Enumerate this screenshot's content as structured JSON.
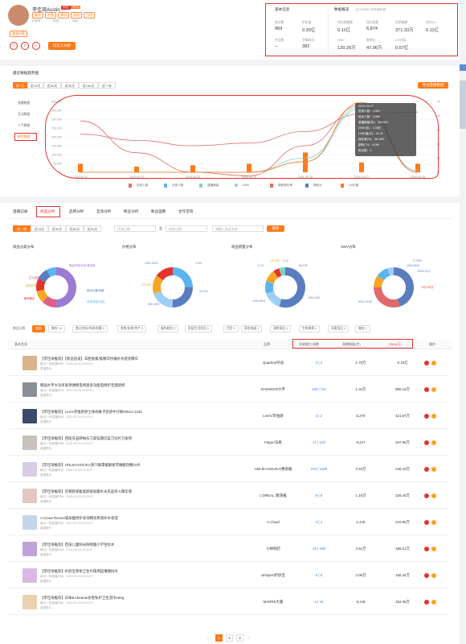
{
  "profile": {
    "name": "李佳琦Austin",
    "tags": [
      "抖音",
      "5374"
    ],
    "subtags": [
      "美妆",
      "护肤",
      "潮流",
      "宠物",
      "日用"
    ],
    "meta": [
      "抖音号：",
      "粉丝：",
      "",
      "地区：",
      "",
      ""
    ],
    "category": "美妆护肤",
    "action": "找达人分析"
  },
  "basic": {
    "title": "基本信息",
    "items": [
      {
        "label": "粉丝数",
        "value": "969"
      },
      {
        "label": "带货量",
        "value": "0.30亿"
      },
      {
        "label": "作品数",
        "value": "--"
      },
      {
        "label": "开播场次",
        "value": "382"
      }
    ]
  },
  "overview": {
    "title": "数据概览",
    "note": "(近30天统计所有播数据)",
    "items": [
      {
        "label": "场均销售额",
        "value": "0.11亿"
      },
      {
        "label": "场均观看",
        "value": "6,874"
      },
      {
        "label": "总销售额",
        "value": "371.33万"
      },
      {
        "label": "场均UV",
        "value": "0.11亿"
      },
      {
        "label": "GMV",
        "value": "120.29万"
      },
      {
        "label": "客单价",
        "value": "47.06万"
      },
      {
        "label": "UV价值",
        "value": "0.57亿"
      }
    ]
  },
  "trend": {
    "title": "最近数据趋势图",
    "ranges": [
      "近7天",
      "近15天",
      "近30天",
      "近90天",
      "近180天",
      "近一年"
    ],
    "export": "导出直播数据",
    "side_tabs": [
      "直播数据",
      "互动数据",
      "人气数据",
      "带货数据"
    ],
    "legend": [
      "在线人数",
      "点赞人数",
      "直播销量",
      "GMV",
      "销售转化率",
      "新粉丝",
      "UV价值"
    ],
    "tooltip": {
      "date": "2020.09.27",
      "lines": [
        "进场人数：4,591",
        "进店人数：2,968",
        "直播销量(件)：395,623",
        "GMV(亿)：1.65亿",
        "UV价值(元)：41.42",
        "转化率(%)：38.18%",
        "新粉(个)：4,196",
        "粉丝数：0"
      ]
    }
  },
  "chart_data": {
    "type": "line",
    "x": [
      "2020.09.22",
      "2020.09.23",
      "2020.09.24",
      "2020.09.25",
      "2020.09.26",
      "2020.09.27",
      "2020.09.28"
    ],
    "yticks_left": [
      "0",
      "50,000",
      "100,000",
      "150,000",
      "200,000",
      "250,000",
      "300,000",
      "350,000",
      "400,000"
    ],
    "yticks_right": [
      "0",
      "10",
      "20",
      "30",
      "40",
      "50"
    ],
    "series": [
      {
        "name": "在线人数",
        "values": [
          215000,
          180000,
          150000,
          165000,
          230000,
          330000,
          340000
        ]
      },
      {
        "name": "直播销量",
        "values": [
          0,
          0,
          0,
          0,
          80000,
          370000,
          10000
        ]
      },
      {
        "name": "GMV",
        "values": [
          0,
          0,
          0,
          0,
          60000,
          360000,
          0
        ]
      },
      {
        "name": "销售转化率",
        "values": [
          290000,
          110000,
          0,
          -20000,
          150000,
          380000,
          0
        ]
      },
      {
        "name": "UV价值",
        "values": [
          0,
          0,
          0,
          0,
          60000,
          395000,
          0
        ]
      }
    ],
    "bars": [
      6,
      4,
      5,
      6,
      14,
      7,
      6
    ],
    "colors": [
      "#e07070",
      "#5ab4f0",
      "#7dd3c0",
      "#9fcff5",
      "#e06a6a",
      "#5a7dbf",
      "#ff7a1a"
    ]
  },
  "analysis": {
    "tabs": [
      "直播记录",
      "商品分析",
      "品牌分析",
      "互动分析",
      "粉丝分析",
      "粉丝画像",
      "合作咨询"
    ],
    "ranges": [
      "近一周",
      "近15天",
      "近30天",
      "近60天",
      "近90天"
    ],
    "date_from": "开始日期",
    "date_sep": "至",
    "date_to": "结束日期",
    "search_ph": "请输入商品名称",
    "search_btn": "搜索"
  },
  "donuts": [
    {
      "title": "商品分类分布",
      "labels": [
        "美妆护肤/彩妆/美容修...",
        "生活电器",
        "食品饮料",
        "服饰鞋包",
        "美容仪器/电器",
        "宠物/家居/玩具"
      ]
    },
    {
      "title": "价格分布",
      "labels": [
        "1000-2000",
        "0-30",
        "100-500",
        "30-100",
        "500-1000"
      ]
    },
    {
      "title": "商品销量分布",
      "labels": [
        "0-10",
        "100-500",
        "10-50",
        "50-100",
        "1000-5000",
        "500-1000"
      ]
    },
    {
      "title": "GMV分布",
      "labels": [
        "0-1000",
        "1000-5000",
        "5000-10万",
        "10万-50万",
        "50万-100万"
      ]
    }
  ],
  "filters": {
    "label": "商品分类:",
    "items": [
      "全部",
      "美妆 14",
      "食品饮料/冲调/保健 3",
      "零食/坚果/特产 2",
      "服饰鞋包 2",
      "家居生活用品 1",
      "百货 1",
      "家用电器 1",
      "宠物用品 1",
      "生鲜果蔬 1",
      "母婴用品 1",
      "箱包 1"
    ]
  },
  "table": {
    "headers": [
      "基本信息",
      "品牌",
      "关联播主/场数",
      "直播销量(件)",
      "GMV(万)",
      "操作"
    ],
    "rows": [
      {
        "title": "【李佳琦推荐】【新品首发】羊胎盘素/肽精华抗皱补水提亮精华",
        "meta": "最近一场直播时间：2020-09-28 20:00:57",
        "sub": "直播售价",
        "brand": "Quadrra/夸迪",
        "link": "2 | 2",
        "sales": "1.76万",
        "gmv": "0.10亿"
      },
      {
        "title": "韩国大宇大功率家用便携电烤盘多功能电烤炉无烟烧烤",
        "meta": "最近一场直播时间：2020-09-28 20:00:57",
        "sub": "直播售价",
        "brand": "DAEWOO/大宇",
        "link": "132 | 721",
        "sales": "1.34万",
        "gmv": "895.16万"
      },
      {
        "title": "【李佳琦推荐】Levi's李维斯男士休闲裤子舒适牛仔裤00514-1240",
        "meta": "最近一场直播时间：2020-09-28 20:00:57",
        "sub": "直播售价",
        "brand": "Levi's/李维斯",
        "link": "2 | 2",
        "sales": "5,270",
        "gmv": "421.87万"
      },
      {
        "title": "【李佳琦推荐】西班牙品牌纳乐刀高锰钢切菜刀切片刀家用",
        "meta": "最近一场直播时间：2020-09-28 20:00:57",
        "sub": "直播售价",
        "brand": "Fagor/法格",
        "link": "17 | 103",
        "sales": "9,427",
        "gmv": "347.86万"
      },
      {
        "title": "【李佳琦推荐】HOLIKAHOLIKA蒸汽眼罩缓解疲劳睡眠热敷10片",
        "meta": "最近一场直播时间：2020-09-28 20:00:57",
        "sub": "直播售价",
        "brand": "HOLIKAHOLIKA/惠恩雅",
        "link": "210 | 1189",
        "sales": "3.43万",
        "gmv": "236.43万"
      },
      {
        "title": "【李佳琦推荐】巴黎欧莱雅复颜玻尿酸水光充盈导入精华液",
        "meta": "最近一场直播时间：2020-09-28 20:00:57",
        "sub": "直播售价",
        "brand": "L'OREAL /欧莱雅",
        "link": "8 | 8",
        "sales": "1.19万",
        "gmv": "226.40万"
      },
      {
        "title": "A.Cloud Romee玻尿酸修护多效精华原液补水保湿",
        "meta": "最近一场直播时间：2020-09-28 20:00:57",
        "sub": "直播售价",
        "brand": "A.Cloud",
        "link": "4 | 4",
        "sales": "1,440",
        "gmv": "215.86万"
      },
      {
        "title": "【李佳琦推荐】西溪儿童阳光防晒霜小学生防水",
        "meta": "最近一场直播时间：2020-09-28 20:00:57",
        "sub": "直播售价",
        "brand": "小林制药",
        "link": "43 | 208",
        "sales": "4.51万",
        "gmv": "186.61万"
      },
      {
        "title": "【李佳琦推荐】护舒宝液体卫生巾夜用超薄姨妈巾",
        "meta": "最近一场直播时间：2020-09-28 20:00:57",
        "sub": "直播售价",
        "brand": "whisper/护舒宝",
        "link": "5 | 5",
        "sales": "2.09万",
        "gmv": "156.34万"
      },
      {
        "title": "【李佳琦推荐】日本Ex:beaute女性私护卫生湿巾150g",
        "meta": "最近一场直播时间：2020-09-28 20:00:57",
        "sub": "直播售价",
        "brand": "MADRE大蜜",
        "link": "5 | 16",
        "sales": "6,149",
        "gmv": "152.58万"
      }
    ]
  },
  "pagination": {
    "pages": [
      "1",
      "2",
      "3"
    ],
    "prev": "‹",
    "next": "›"
  },
  "side": {
    "label": "返回顶部"
  }
}
